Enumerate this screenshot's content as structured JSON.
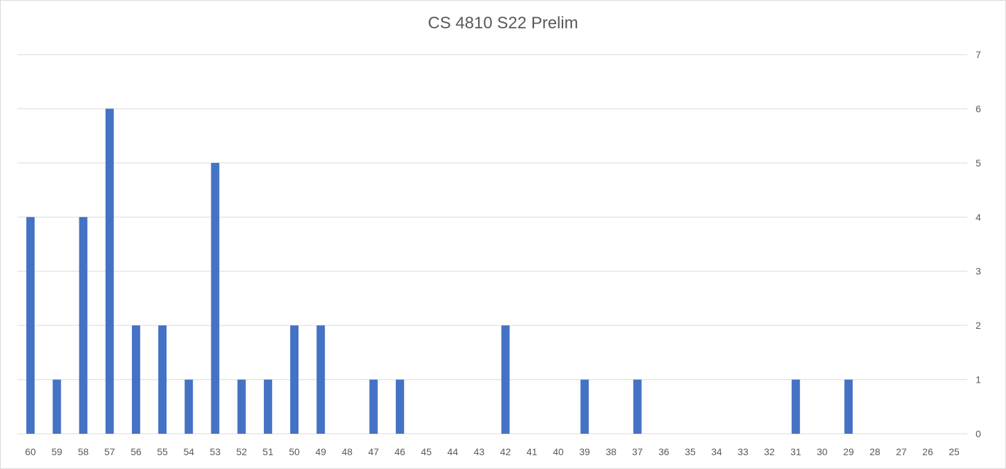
{
  "chart_data": {
    "type": "bar",
    "title": "CS 4810 S22 Prelim",
    "xlabel": "",
    "ylabel": "",
    "categories": [
      "60",
      "59",
      "58",
      "57",
      "56",
      "55",
      "54",
      "53",
      "52",
      "51",
      "50",
      "49",
      "48",
      "47",
      "46",
      "45",
      "44",
      "43",
      "42",
      "41",
      "40",
      "39",
      "38",
      "37",
      "36",
      "35",
      "34",
      "33",
      "32",
      "31",
      "30",
      "29",
      "28",
      "27",
      "26",
      "25"
    ],
    "values": [
      4,
      1,
      4,
      6,
      2,
      2,
      1,
      5,
      1,
      1,
      2,
      2,
      0,
      1,
      1,
      0,
      0,
      0,
      2,
      0,
      0,
      1,
      0,
      1,
      0,
      0,
      0,
      0,
      0,
      1,
      0,
      1,
      0,
      0,
      0,
      0
    ],
    "ylim": [
      0,
      7
    ],
    "yticks": [
      0,
      1,
      2,
      3,
      4,
      5,
      6,
      7
    ],
    "y_axis_side": "right",
    "grid": true,
    "legend": "none",
    "bar_color": "#4472C4",
    "grid_color": "#d9d9d9"
  }
}
